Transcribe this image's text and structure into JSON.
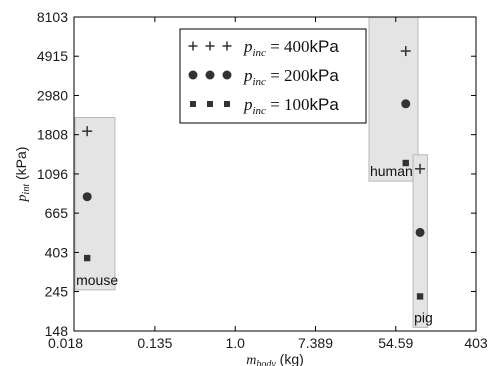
{
  "chart_data": {
    "type": "scatter",
    "xlabel": {
      "symbol": "m",
      "sub": "body",
      "unit": " (kg)"
    },
    "ylabel": {
      "symbol": "p",
      "sub": "int",
      "unit": " (kPa)"
    },
    "xscale": "log",
    "yscale": "log",
    "xlim": [
      0.018,
      403
    ],
    "ylim": [
      148,
      8103
    ],
    "xticks": [
      0.018,
      0.135,
      1.0,
      7.389,
      54.59,
      403
    ],
    "xtick_labels": [
      "0.018",
      "0.135",
      "1.0",
      "7.389",
      "54.59",
      "403"
    ],
    "yticks": [
      148,
      245,
      403,
      665,
      1096,
      1808,
      2980,
      4915,
      8103
    ],
    "ytick_labels": [
      "148",
      "245",
      "403",
      "665",
      "1096",
      "1808",
      "2980",
      "4915",
      "8103"
    ],
    "grid": false,
    "legend_position": "top-center",
    "series": [
      {
        "key": "p400",
        "marker": "plus",
        "legend": {
          "symbol": "p",
          "sub": "inc",
          "eq": " = 400",
          "unit": "kPa"
        },
        "x": [
          0.025,
          70,
          100
        ],
        "y": [
          1890,
          5250,
          1170
        ]
      },
      {
        "key": "p200",
        "marker": "circle",
        "legend": {
          "symbol": "p",
          "sub": "inc",
          "eq": " = 200",
          "unit": "kPa"
        },
        "x": [
          0.025,
          70,
          100
        ],
        "y": [
          820,
          2680,
          520
        ]
      },
      {
        "key": "p100",
        "marker": "square",
        "legend": {
          "symbol": "p",
          "sub": "inc",
          "eq": " = 100",
          "unit": "kPa"
        },
        "x": [
          0.025,
          70,
          100
        ],
        "y": [
          375,
          1260,
          230
        ]
      }
    ],
    "groups": [
      {
        "key": "mouse",
        "label": "mouse",
        "x": [
          0.0185,
          0.05
        ],
        "y": [
          250,
          2250
        ]
      },
      {
        "key": "human",
        "label": "human",
        "x": [
          28,
          95
        ],
        "y": [
          1000,
          8103
        ]
      },
      {
        "key": "pig",
        "label": "pig",
        "x": [
          84,
          120
        ],
        "y": [
          155,
          1400
        ]
      }
    ]
  }
}
